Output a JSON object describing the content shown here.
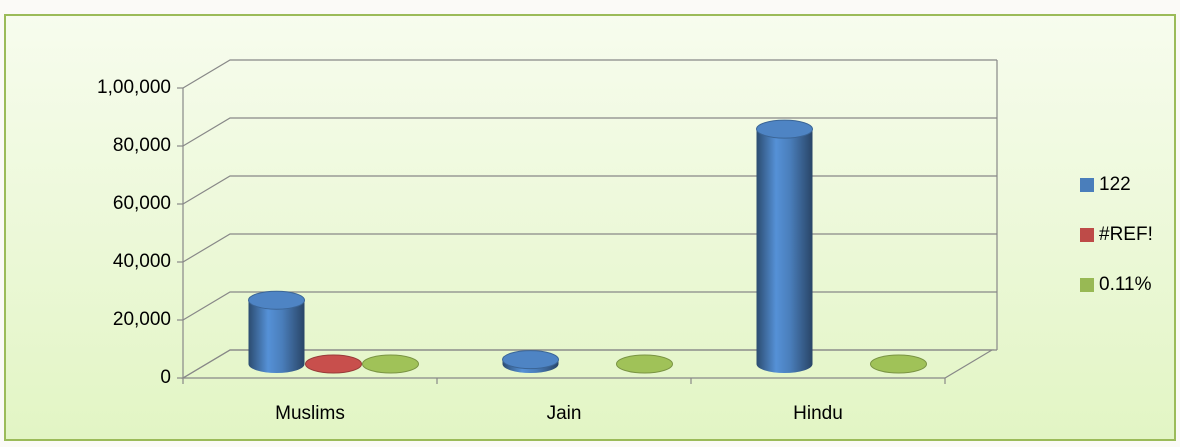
{
  "chart_data": {
    "type": "bar3d",
    "categories": [
      "Muslims",
      "Jain",
      "Hindu"
    ],
    "series": [
      {
        "name": "122",
        "color": "#4a7ebb",
        "values": [
          22000,
          1500,
          81000
        ]
      },
      {
        "name": "#REF!",
        "color": "#be4b48",
        "values": [
          0,
          null,
          null
        ]
      },
      {
        "name": "0.11%",
        "color": "#98b954",
        "values": [
          0,
          0,
          0
        ]
      }
    ],
    "ylim": [
      0,
      100000
    ],
    "yticks": [
      0,
      {
        "value": 20000,
        "label": "20,000"
      },
      {
        "value": 40000,
        "label": "40,000"
      },
      {
        "value": 60000,
        "label": "60,000"
      },
      {
        "value": 80000,
        "label": "80,000"
      },
      {
        "value": 100000,
        "label": "1,00,000"
      }
    ],
    "grid": true,
    "legend": "right"
  }
}
